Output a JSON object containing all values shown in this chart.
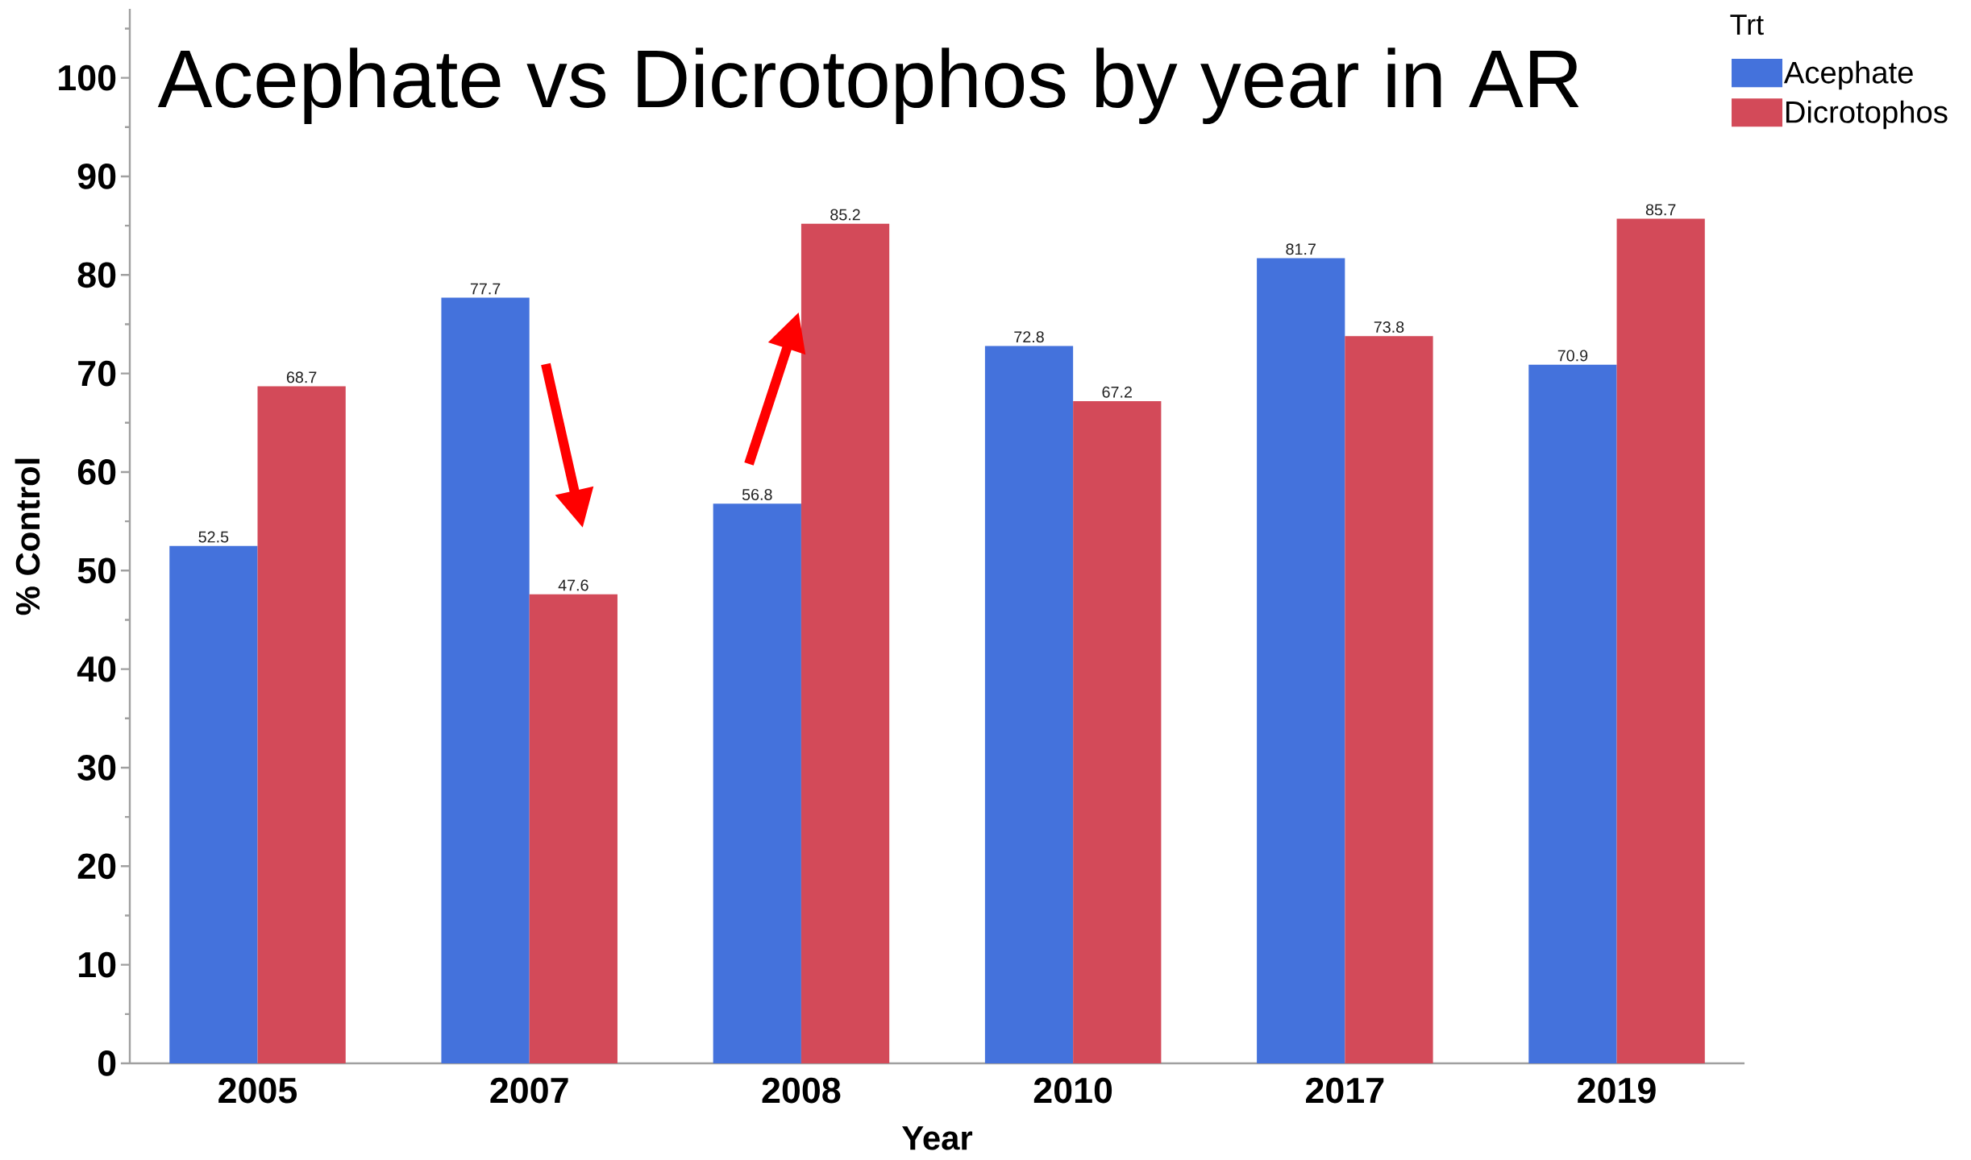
{
  "chart_data": {
    "type": "bar",
    "title": "Acephate vs Dicrotophos by year in AR",
    "xlabel": "Year",
    "ylabel": "% Control",
    "legend_title": "Trt",
    "categories": [
      "2005",
      "2007",
      "2008",
      "2010",
      "2017",
      "2019"
    ],
    "series": [
      {
        "name": "Acephate",
        "color": "#4472dc",
        "values": [
          52.5,
          77.7,
          56.8,
          72.8,
          81.7,
          70.9
        ]
      },
      {
        "name": "Dicrotophos",
        "color": "#d34a59",
        "values": [
          68.7,
          47.6,
          85.2,
          67.2,
          73.8,
          85.7
        ]
      }
    ],
    "ylim": [
      0,
      107
    ],
    "yticks": [
      0,
      {
        "value": 5,
        "label": null
      },
      10,
      {
        "value": 15,
        "label": null
      },
      20,
      {
        "value": 25,
        "label": null
      },
      30,
      {
        "value": 35,
        "label": null
      },
      40,
      {
        "value": 45,
        "label": null
      },
      50,
      {
        "value": 55,
        "label": null
      },
      60,
      {
        "value": 65,
        "label": null
      },
      70,
      {
        "value": 75,
        "label": null
      },
      80,
      {
        "value": 85,
        "label": null
      },
      90,
      {
        "value": 95,
        "label": null
      },
      100,
      {
        "value": 105,
        "label": null
      }
    ],
    "data_labels": true,
    "legend": "top right"
  }
}
